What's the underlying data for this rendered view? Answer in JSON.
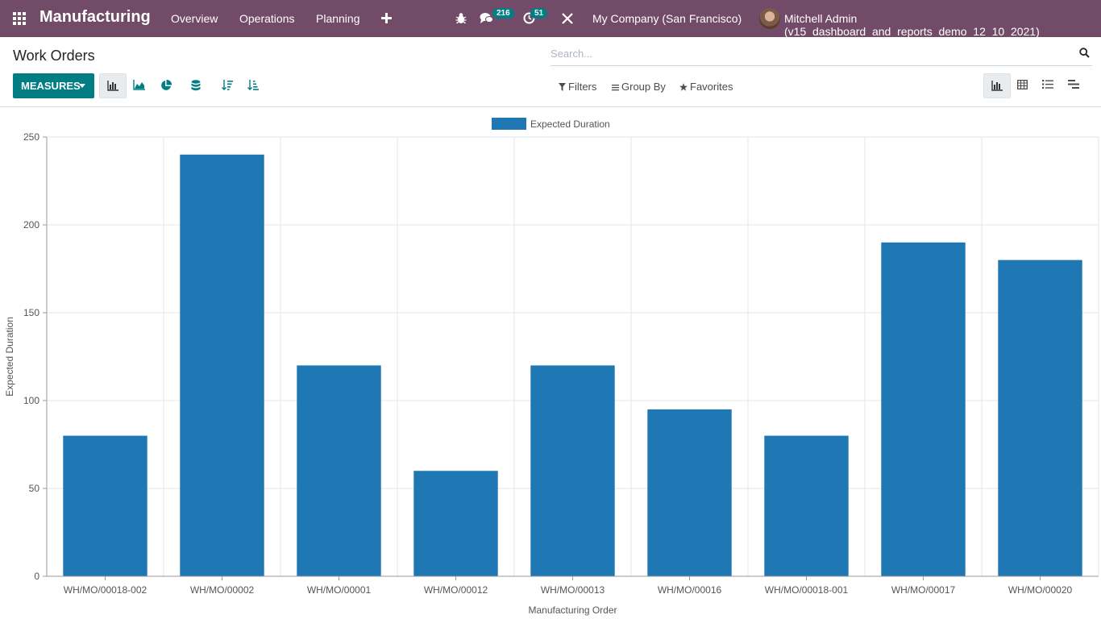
{
  "navbar": {
    "brand": "Manufacturing",
    "menus": [
      "Overview",
      "Operations",
      "Planning"
    ],
    "messages_badge": "216",
    "activities_badge": "51",
    "company": "My Company (San Francisco)",
    "user": "Mitchell Admin (v15_dashboard_and_reports_demo_12_10_2021)"
  },
  "control_panel": {
    "title": "Work Orders",
    "search_placeholder": "Search...",
    "measures_label": "MEASURES",
    "filters_label": "Filters",
    "group_by_label": "Group By",
    "favorites_label": "Favorites"
  },
  "chart_data": {
    "type": "bar",
    "categories": [
      "WH/MO/00018-002",
      "WH/MO/00002",
      "WH/MO/00001",
      "WH/MO/00012",
      "WH/MO/00013",
      "WH/MO/00016",
      "WH/MO/00018-001",
      "WH/MO/00017",
      "WH/MO/00020"
    ],
    "series": [
      {
        "name": "Expected Duration",
        "values": [
          80,
          240,
          120,
          60,
          120,
          95,
          80,
          190,
          180
        ]
      }
    ],
    "xlabel": "Manufacturing Order",
    "ylabel": "Expected Duration",
    "ylim": [
      0,
      250
    ],
    "yticks": [
      0,
      50,
      100,
      150,
      200,
      250
    ],
    "grid": true,
    "legend": "top-center",
    "color": "#1f77b4"
  }
}
